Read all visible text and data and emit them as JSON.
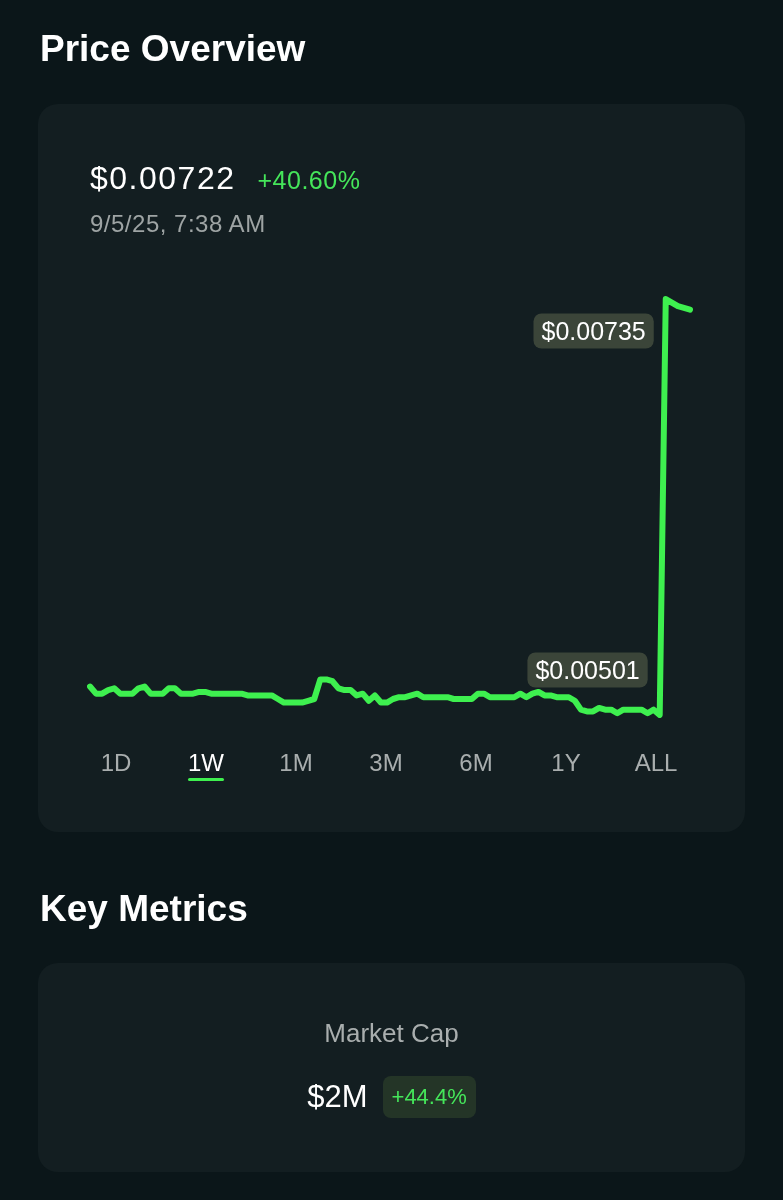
{
  "chart_data": [
    {
      "type": "line",
      "title": "Price Overview",
      "annotations": [
        "$0.00722",
        "+40.60%",
        "9/5/25, 7:38 AM",
        "1D",
        "1W",
        "1M",
        "3M",
        "6M",
        "1Y",
        "ALL"
      ],
      "categories": [
        null,
        null,
        null,
        null,
        null,
        null,
        null,
        null,
        null,
        null,
        null,
        null,
        null,
        null,
        null,
        null,
        null,
        null,
        null,
        null,
        null,
        null,
        null,
        null,
        null,
        null,
        null,
        null,
        null,
        null,
        null,
        null,
        null,
        null,
        null,
        null,
        null,
        null,
        null,
        null,
        null,
        null,
        null,
        null,
        null,
        null,
        null,
        null,
        null,
        null,
        null,
        null,
        null,
        null,
        null,
        null,
        null,
        null,
        null,
        null,
        null,
        null,
        null,
        null,
        null,
        null,
        null,
        null,
        null,
        null,
        null,
        null,
        null,
        null,
        null,
        null,
        null,
        null,
        null,
        null,
        null,
        null,
        null,
        null,
        null,
        null,
        null,
        null,
        null,
        null,
        null,
        null,
        null,
        null,
        null,
        null,
        null,
        null,
        null,
        null
      ],
      "values": [
        0.00517,
        0.00513,
        0.00513,
        0.00515,
        0.00516,
        0.00513,
        0.00513,
        0.00513,
        0.00516,
        0.00517,
        0.00513,
        0.00513,
        0.00513,
        0.00516,
        0.00516,
        0.00513,
        0.00513,
        0.00513,
        0.00514,
        0.00514,
        0.00513,
        0.00513,
        0.00513,
        0.00513,
        0.00513,
        0.00513,
        0.00512,
        0.00512,
        0.00512,
        0.00512,
        0.00512,
        0.0051,
        0.00508,
        0.00508,
        0.00508,
        0.00508,
        0.00509,
        0.0051,
        0.00521,
        0.00521,
        0.0052,
        0.00516,
        0.00515,
        0.00515,
        0.00512,
        0.00513,
        0.00509,
        0.00512,
        0.00508,
        0.00508,
        0.0051,
        0.00511,
        0.00511,
        0.00512,
        0.00513,
        0.00511,
        0.00511,
        0.00511,
        0.00511,
        0.00511,
        0.0051,
        0.0051,
        0.0051,
        0.0051,
        0.00513,
        0.00513,
        0.00511,
        0.00511,
        0.00511,
        0.00511,
        0.00511,
        0.00513,
        0.00511,
        0.00513,
        0.00514,
        0.00512,
        0.00512,
        0.00511,
        0.00511,
        0.00511,
        0.00509,
        0.00504,
        0.00503,
        0.00503,
        0.00505,
        0.00504,
        0.00504,
        0.00502,
        0.00504,
        0.00504,
        0.00504,
        0.00504,
        0.00502,
        0.00504,
        0.00501,
        0.00735,
        0.00733,
        0.00731,
        0.0073,
        0.00729
      ],
      "value_labels": [
        null,
        null,
        null,
        null,
        null,
        null,
        null,
        null,
        null,
        null,
        null,
        null,
        null,
        null,
        null,
        null,
        null,
        null,
        null,
        null,
        null,
        null,
        null,
        null,
        null,
        null,
        null,
        null,
        null,
        null,
        null,
        null,
        null,
        null,
        null,
        null,
        null,
        null,
        null,
        null,
        null,
        null,
        null,
        null,
        null,
        null,
        null,
        null,
        null,
        null,
        null,
        null,
        null,
        null,
        null,
        null,
        null,
        null,
        null,
        null,
        null,
        null,
        null,
        null,
        null,
        null,
        null,
        null,
        null,
        null,
        null,
        null,
        null,
        null,
        null,
        null,
        null,
        null,
        null,
        null,
        null,
        null,
        null,
        null,
        null,
        null,
        null,
        null,
        null,
        null,
        null,
        null,
        null,
        null,
        "$0.00501",
        "$0.00735",
        null,
        null,
        null,
        null
      ],
      "color": "#3ef04f",
      "line_style": "solid",
      "tick_labels": false
    },
    {
      "type": "other",
      "title": "Key Metrics",
      "annotations": [
        "Market Cap",
        "$2M",
        "+44.4%"
      ]
    }
  ]
}
